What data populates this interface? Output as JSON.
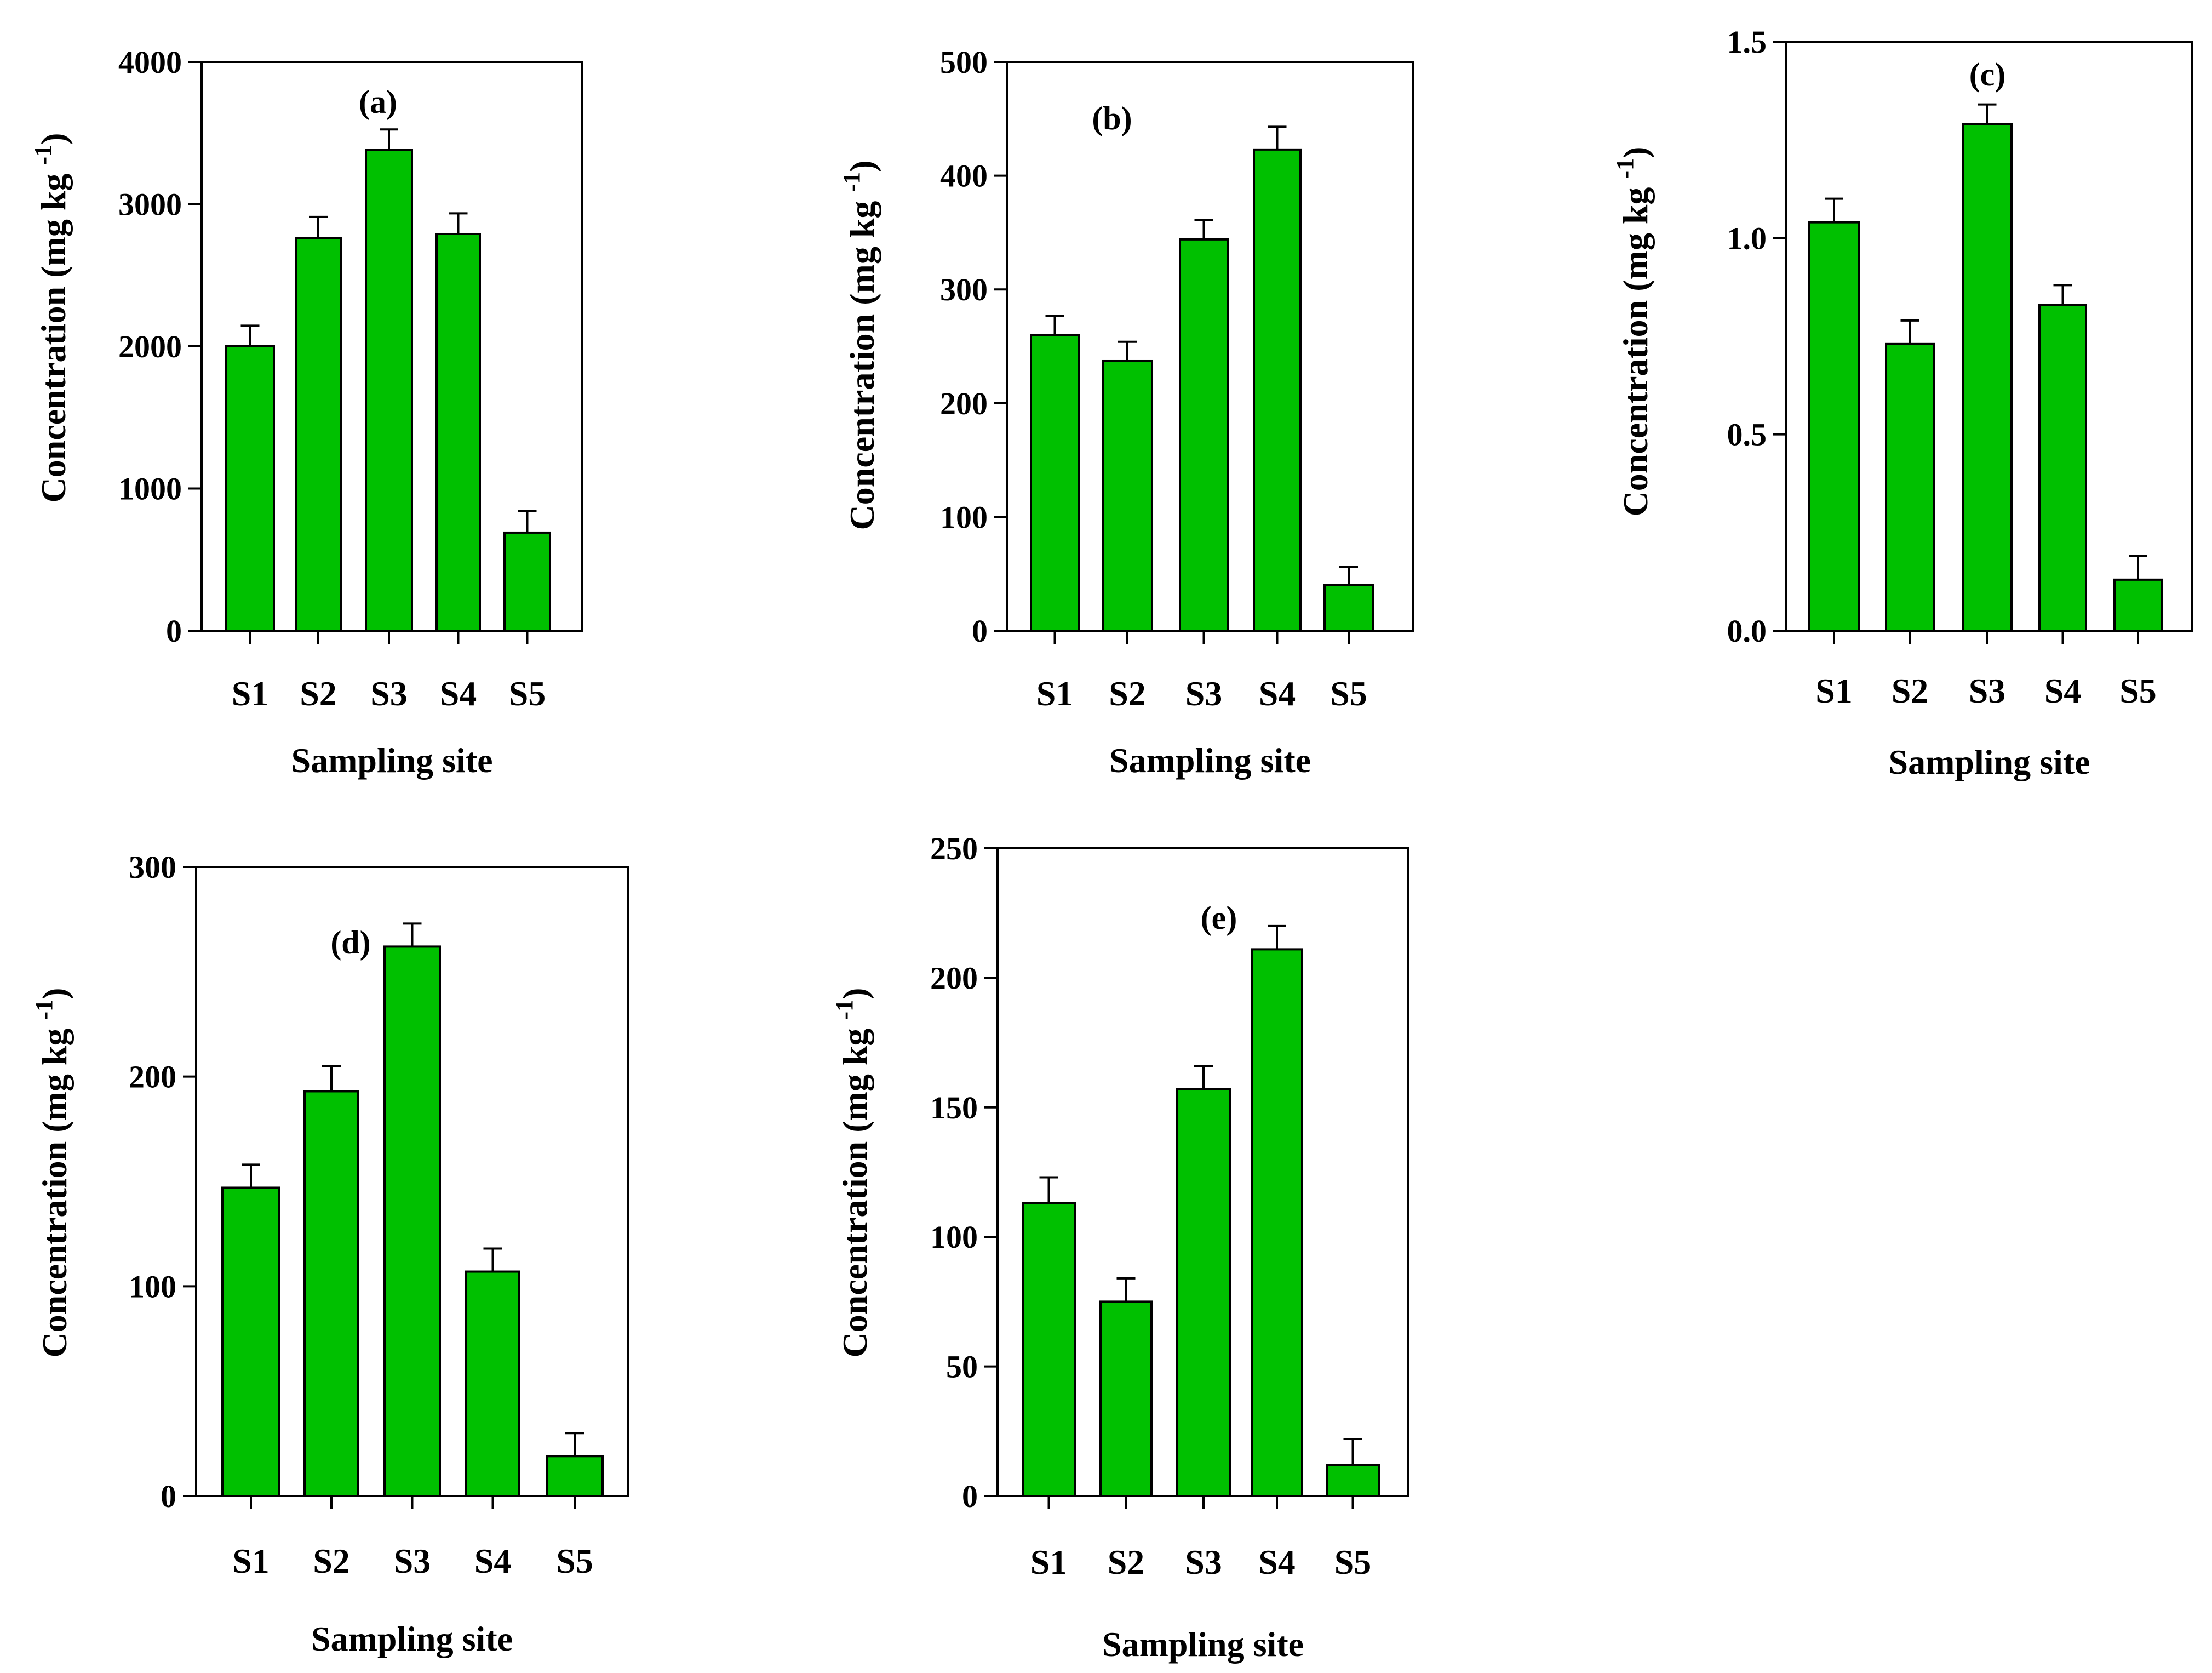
{
  "figure": {
    "bar_color": "#00C000",
    "outline_color": "#000000"
  },
  "chart_data": [
    {
      "type": "bar",
      "panel_label": "(a)",
      "categories": [
        "S1",
        "S2",
        "S3",
        "S4",
        "S5"
      ],
      "values": [
        2000,
        2760,
        3380,
        2790,
        690
      ],
      "errors": [
        145,
        150,
        145,
        145,
        150
      ],
      "xlabel": "Sampling site",
      "ylabel": "Concentration (mg kg",
      "ylabel_sup": "-1",
      "ylabel_end": ")",
      "ylim": [
        0,
        4000
      ],
      "yticks": [
        "0",
        "1000",
        "2000",
        "3000",
        "4000"
      ]
    },
    {
      "type": "bar",
      "panel_label": "(b)",
      "categories": [
        "S1",
        "S2",
        "S3",
        "S4",
        "S5"
      ],
      "values": [
        260,
        237,
        344,
        423,
        40
      ],
      "errors": [
        17,
        17,
        17,
        20,
        16
      ],
      "xlabel": "Sampling site",
      "ylabel": "Concentration (mg kg",
      "ylabel_sup": "-1",
      "ylabel_end": ")",
      "ylim": [
        0,
        500
      ],
      "yticks": [
        "0",
        "100",
        "200",
        "300",
        "400",
        "500"
      ]
    },
    {
      "type": "bar",
      "panel_label": "(c)",
      "categories": [
        "S1",
        "S2",
        "S3",
        "S4",
        "S5"
      ],
      "values": [
        1.04,
        0.73,
        1.29,
        0.83,
        0.13
      ],
      "errors": [
        0.06,
        0.06,
        0.05,
        0.05,
        0.06
      ],
      "xlabel": "Sampling site",
      "ylabel": "Concentration (mg kg",
      "ylabel_sup": "-1",
      "ylabel_end": ")",
      "ylim": [
        0,
        1.5
      ],
      "yticks": [
        "0.0",
        "0.5",
        "1.0",
        "1.5"
      ]
    },
    {
      "type": "bar",
      "panel_label": "(d)",
      "categories": [
        "S1",
        "S2",
        "S3",
        "S4",
        "S5"
      ],
      "values": [
        147,
        193,
        262,
        107,
        19
      ],
      "errors": [
        11,
        12,
        11,
        11,
        11
      ],
      "xlabel": "Sampling site",
      "ylabel": "Concentration (mg kg",
      "ylabel_sup": "-1",
      "ylabel_end": ")",
      "ylim": [
        0,
        300
      ],
      "yticks": [
        "0",
        "100",
        "200",
        "300"
      ]
    },
    {
      "type": "bar",
      "panel_label": "(e)",
      "categories": [
        "S1",
        "S2",
        "S3",
        "S4",
        "S5"
      ],
      "values": [
        113,
        75,
        157,
        211,
        12
      ],
      "errors": [
        10,
        9,
        9,
        9,
        10
      ],
      "xlabel": "Sampling site",
      "ylabel": "Concentration (mg kg",
      "ylabel_sup": "-1",
      "ylabel_end": ")",
      "ylim": [
        0,
        250
      ],
      "yticks": [
        "0",
        "50",
        "100",
        "150",
        "200",
        "250"
      ]
    }
  ]
}
